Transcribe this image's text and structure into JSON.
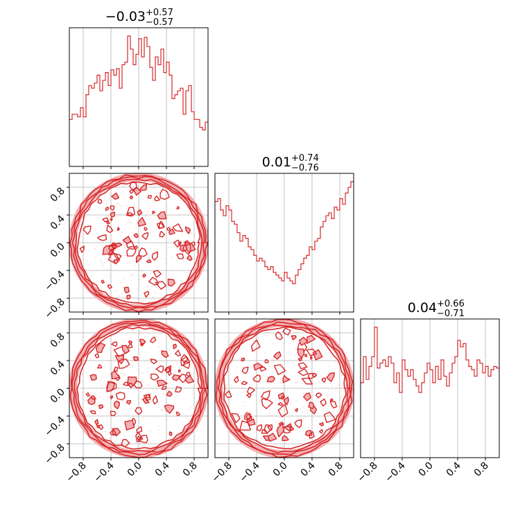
{
  "chart_data": {
    "type": "corner",
    "color": "#d62728",
    "contour_fill": "#f3b0b3",
    "grid": true,
    "x_ticks": [
      "−0.8",
      "−0.4",
      "0.0",
      "0.4",
      "0.8"
    ],
    "y_ticks": [
      "0.8",
      "0.4",
      "0.0",
      "−0.4",
      "−0.8"
    ],
    "tick_values": [
      -0.8,
      -0.4,
      0.0,
      0.4,
      0.8
    ],
    "range": [
      -1,
      1
    ],
    "titles": [
      {
        "value": "−0.03",
        "plus": "+0.57",
        "minus": "−0.57"
      },
      {
        "value": "0.01",
        "plus": "+0.74",
        "minus": "−0.76"
      },
      {
        "value": "0.04",
        "plus": "+0.66",
        "minus": "−0.71"
      }
    ],
    "histograms": [
      {
        "bins": 50,
        "counts": [
          0.36,
          0.4,
          0.4,
          0.38,
          0.45,
          0.38,
          0.55,
          0.62,
          0.6,
          0.64,
          0.7,
          0.58,
          0.66,
          0.72,
          0.62,
          0.74,
          0.7,
          0.75,
          0.6,
          0.78,
          0.8,
          1.0,
          0.9,
          0.78,
          0.86,
          0.98,
          0.84,
          0.99,
          0.92,
          0.76,
          0.66,
          0.84,
          0.78,
          0.9,
          0.72,
          0.8,
          0.7,
          0.52,
          0.55,
          0.58,
          0.6,
          0.4,
          0.58,
          0.62,
          0.42,
          0.36,
          0.36,
          0.3,
          0.28,
          0.34
        ]
      },
      {
        "bins": 50,
        "counts": [
          0.78,
          0.8,
          0.72,
          0.68,
          0.75,
          0.72,
          0.64,
          0.62,
          0.56,
          0.5,
          0.54,
          0.52,
          0.46,
          0.44,
          0.4,
          0.36,
          0.38,
          0.36,
          0.32,
          0.3,
          0.32,
          0.28,
          0.26,
          0.24,
          0.22,
          0.28,
          0.24,
          0.22,
          0.2,
          0.26,
          0.3,
          0.34,
          0.38,
          0.4,
          0.46,
          0.44,
          0.5,
          0.52,
          0.6,
          0.64,
          0.68,
          0.7,
          0.66,
          0.74,
          0.72,
          0.8,
          0.76,
          0.84,
          0.88,
          0.92
        ]
      },
      {
        "bins": 50,
        "counts": [
          0.46,
          0.62,
          0.48,
          0.56,
          0.62,
          0.8,
          0.55,
          0.58,
          0.6,
          0.56,
          0.62,
          0.58,
          0.46,
          0.52,
          0.4,
          0.6,
          0.54,
          0.5,
          0.54,
          0.48,
          0.44,
          0.4,
          0.46,
          0.52,
          0.58,
          0.54,
          0.46,
          0.56,
          0.48,
          0.6,
          0.5,
          0.44,
          0.52,
          0.58,
          0.62,
          0.72,
          0.68,
          0.7,
          0.6,
          0.56,
          0.54,
          0.5,
          0.6,
          0.58,
          0.52,
          0.56,
          0.5,
          0.54,
          0.56,
          0.55
        ]
      }
    ],
    "scatter_panels": [
      {
        "row": 1,
        "col": 0,
        "shape": "disk",
        "radius": 1.0
      },
      {
        "row": 2,
        "col": 0,
        "shape": "disk",
        "radius": 1.0
      },
      {
        "row": 2,
        "col": 1,
        "shape": "disk",
        "radius": 1.0
      }
    ]
  }
}
